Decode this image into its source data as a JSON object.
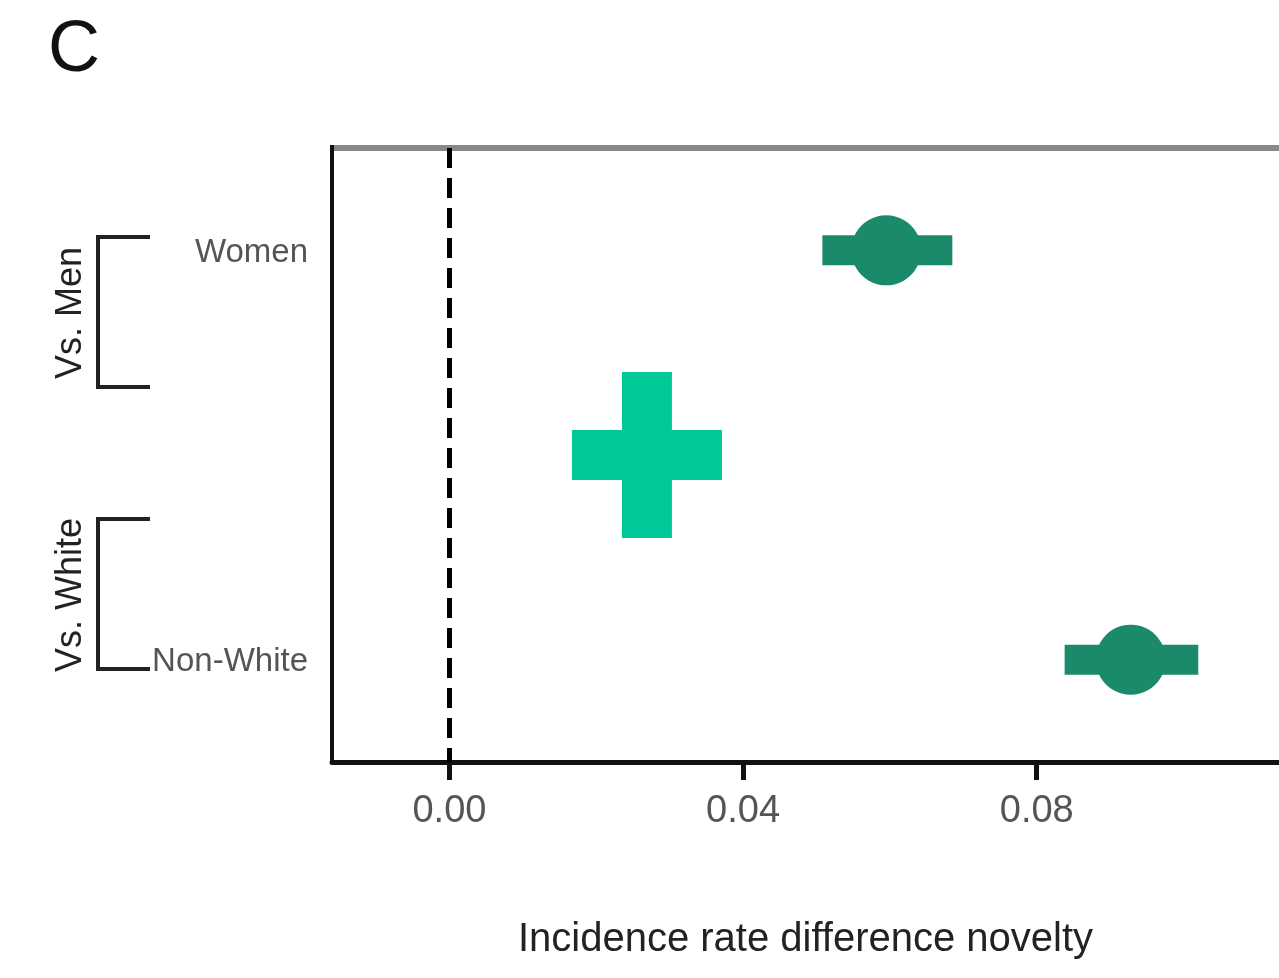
{
  "chart_data": {
    "type": "scatter",
    "title": "C",
    "xlabel": "Incidence rate difference novelty",
    "orientation": "horizontal",
    "categories": [
      "Women",
      null,
      "Non-White"
    ],
    "series": [
      {
        "color": "#1a8a6a",
        "marker": "circle",
        "values": [
          0.0595,
          null,
          0.0928
        ],
        "errors": [
          [
            0.0508,
            0.0685
          ],
          null,
          [
            0.0838,
            0.102
          ]
        ]
      },
      {
        "color": "#00c896",
        "marker": "cross",
        "values": [
          null,
          0.0269,
          null
        ]
      }
    ],
    "xlim": [
      -0.016,
      0.113
    ],
    "xticks": [
      {
        "value": 0,
        "label": "0.00"
      },
      {
        "value": 0.04,
        "label": "0.04"
      },
      {
        "value": 0.08,
        "label": "0.08"
      }
    ],
    "ref_lines": [
      {
        "axis": "x",
        "value": 0,
        "line_style": "dashed",
        "color": "#000000"
      }
    ],
    "annotations": [
      "Vs. Men",
      "Vs. White"
    ],
    "grid": false
  }
}
